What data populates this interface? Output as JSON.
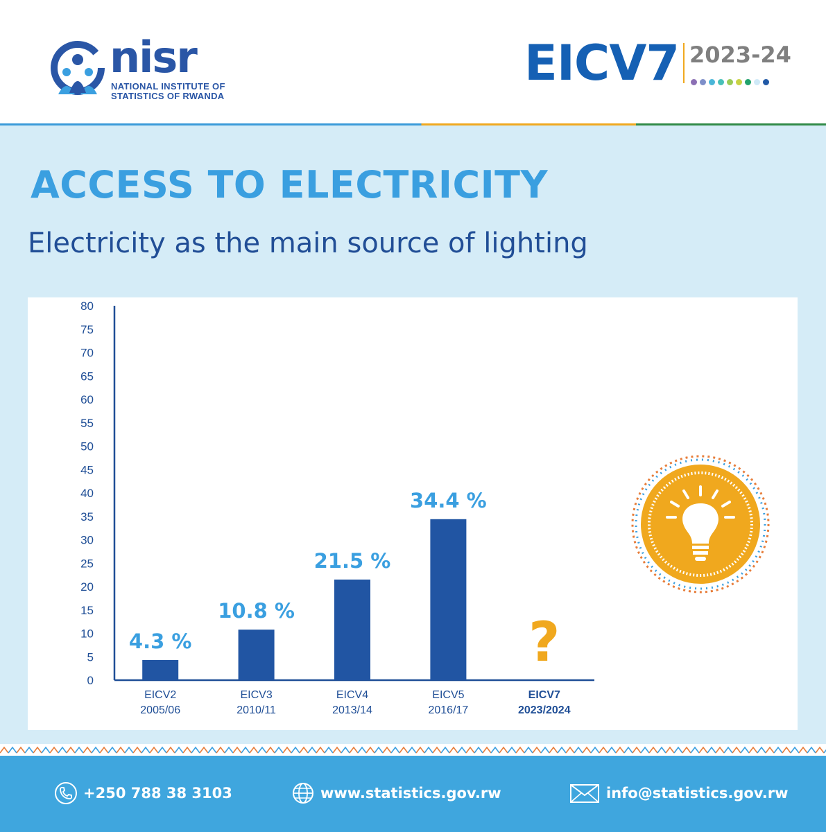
{
  "header": {
    "logo_name": "nisr",
    "logo_line1": "NATIONAL INSTITUTE OF",
    "logo_line2": "STATISTICS OF RWANDA",
    "survey_title": "EICV7",
    "survey_years": "2023-24",
    "dot_colors": [
      "#8b6fb4",
      "#7e8fc9",
      "#4ab6d8",
      "#48c0b8",
      "#9acb55",
      "#c9d243",
      "#21a26c",
      "#cfe9f7",
      "#2159a6"
    ]
  },
  "page": {
    "title": "ACCESS TO ELECTRICITY",
    "subtitle": "Electricity as the main source of lighting"
  },
  "chart_data": {
    "type": "bar",
    "categories": [
      {
        "line1": "EICV2",
        "line2": "2005/06",
        "bold": false
      },
      {
        "line1": "EICV3",
        "line2": "2010/11",
        "bold": false
      },
      {
        "line1": "EICV4",
        "line2": "2013/14",
        "bold": false
      },
      {
        "line1": "EICV5",
        "line2": "2016/17",
        "bold": false
      },
      {
        "line1": "EICV7",
        "line2": "2023/2024",
        "bold": true
      }
    ],
    "values": [
      4.3,
      10.8,
      21.5,
      34.4,
      null
    ],
    "value_labels": [
      "4.3 %",
      "10.8 %",
      "21.5 %",
      "34.4 %",
      "?"
    ],
    "ylim": [
      0,
      80
    ],
    "yticks": [
      0,
      5,
      10,
      15,
      20,
      25,
      30,
      35,
      40,
      45,
      50,
      55,
      60,
      65,
      70,
      75,
      80
    ],
    "bar_color": "#2155a3",
    "label_color": "#3a9fe0",
    "unknown_color": "#f0a81e",
    "grid": false
  },
  "icons": {
    "bulb": "lightbulb-icon",
    "phone": "phone-icon",
    "globe": "globe-icon",
    "mail": "mail-icon"
  },
  "footer": {
    "phone": "+250 788 38 3103",
    "website": "www.statistics.gov.rw",
    "email": "info@statistics.gov.rw"
  }
}
